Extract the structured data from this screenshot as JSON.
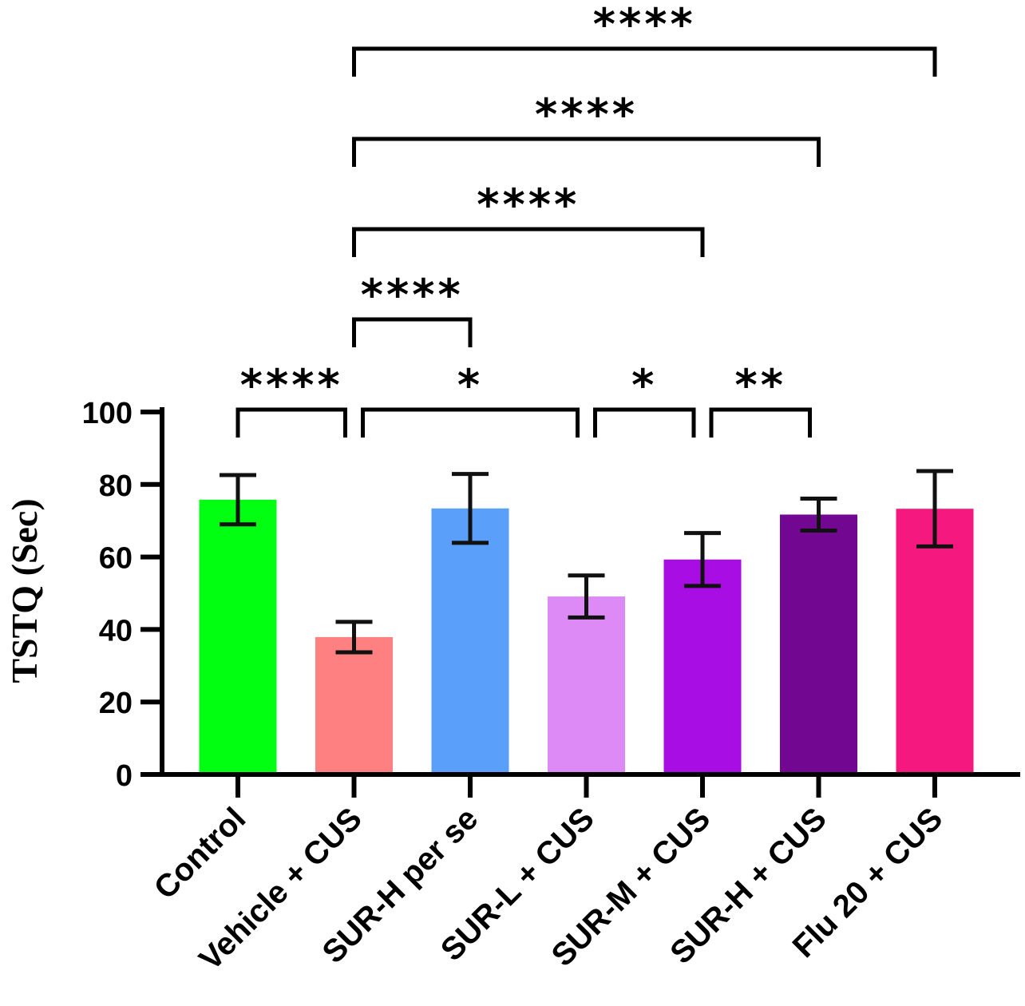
{
  "chart_data": {
    "type": "bar",
    "title": "",
    "xlabel": "",
    "ylabel": "TSTQ (Sec)",
    "ylim": [
      0,
      100
    ],
    "yticks": [
      0,
      20,
      40,
      60,
      80,
      100
    ],
    "categories": [
      "Control",
      "Vehicle + CUS",
      "SUR-H per se",
      "SUR-L + CUS",
      "SUR-M + CUS",
      "SUR-H + CUS",
      "Flu 20 + CUS"
    ],
    "values": [
      75.8,
      37.9,
      73.4,
      49.1,
      59.3,
      71.7,
      73.3
    ],
    "errors": [
      6.8,
      4.2,
      9.5,
      5.8,
      7.3,
      4.4,
      10.4
    ],
    "colors": [
      "#00ff10",
      "#ff8080",
      "#5aa0fa",
      "#dd8af6",
      "#a80ee3",
      "#720892",
      "#f5187e"
    ],
    "grid": false,
    "legend": "none",
    "significance": [
      {
        "from": 0,
        "to": 1,
        "label": "****",
        "level": 0
      },
      {
        "from": 1,
        "to": 3,
        "label": "*",
        "level": 0
      },
      {
        "from": 3,
        "to": 4,
        "label": "*",
        "level": 0
      },
      {
        "from": 4,
        "to": 5,
        "label": "**",
        "level": 0
      },
      {
        "from": 1,
        "to": 2,
        "label": "****",
        "level": 1
      },
      {
        "from": 1,
        "to": 4,
        "label": "****",
        "level": 2
      },
      {
        "from": 1,
        "to": 5,
        "label": "****",
        "level": 3
      },
      {
        "from": 1,
        "to": 6,
        "label": "****",
        "level": 4
      }
    ]
  }
}
